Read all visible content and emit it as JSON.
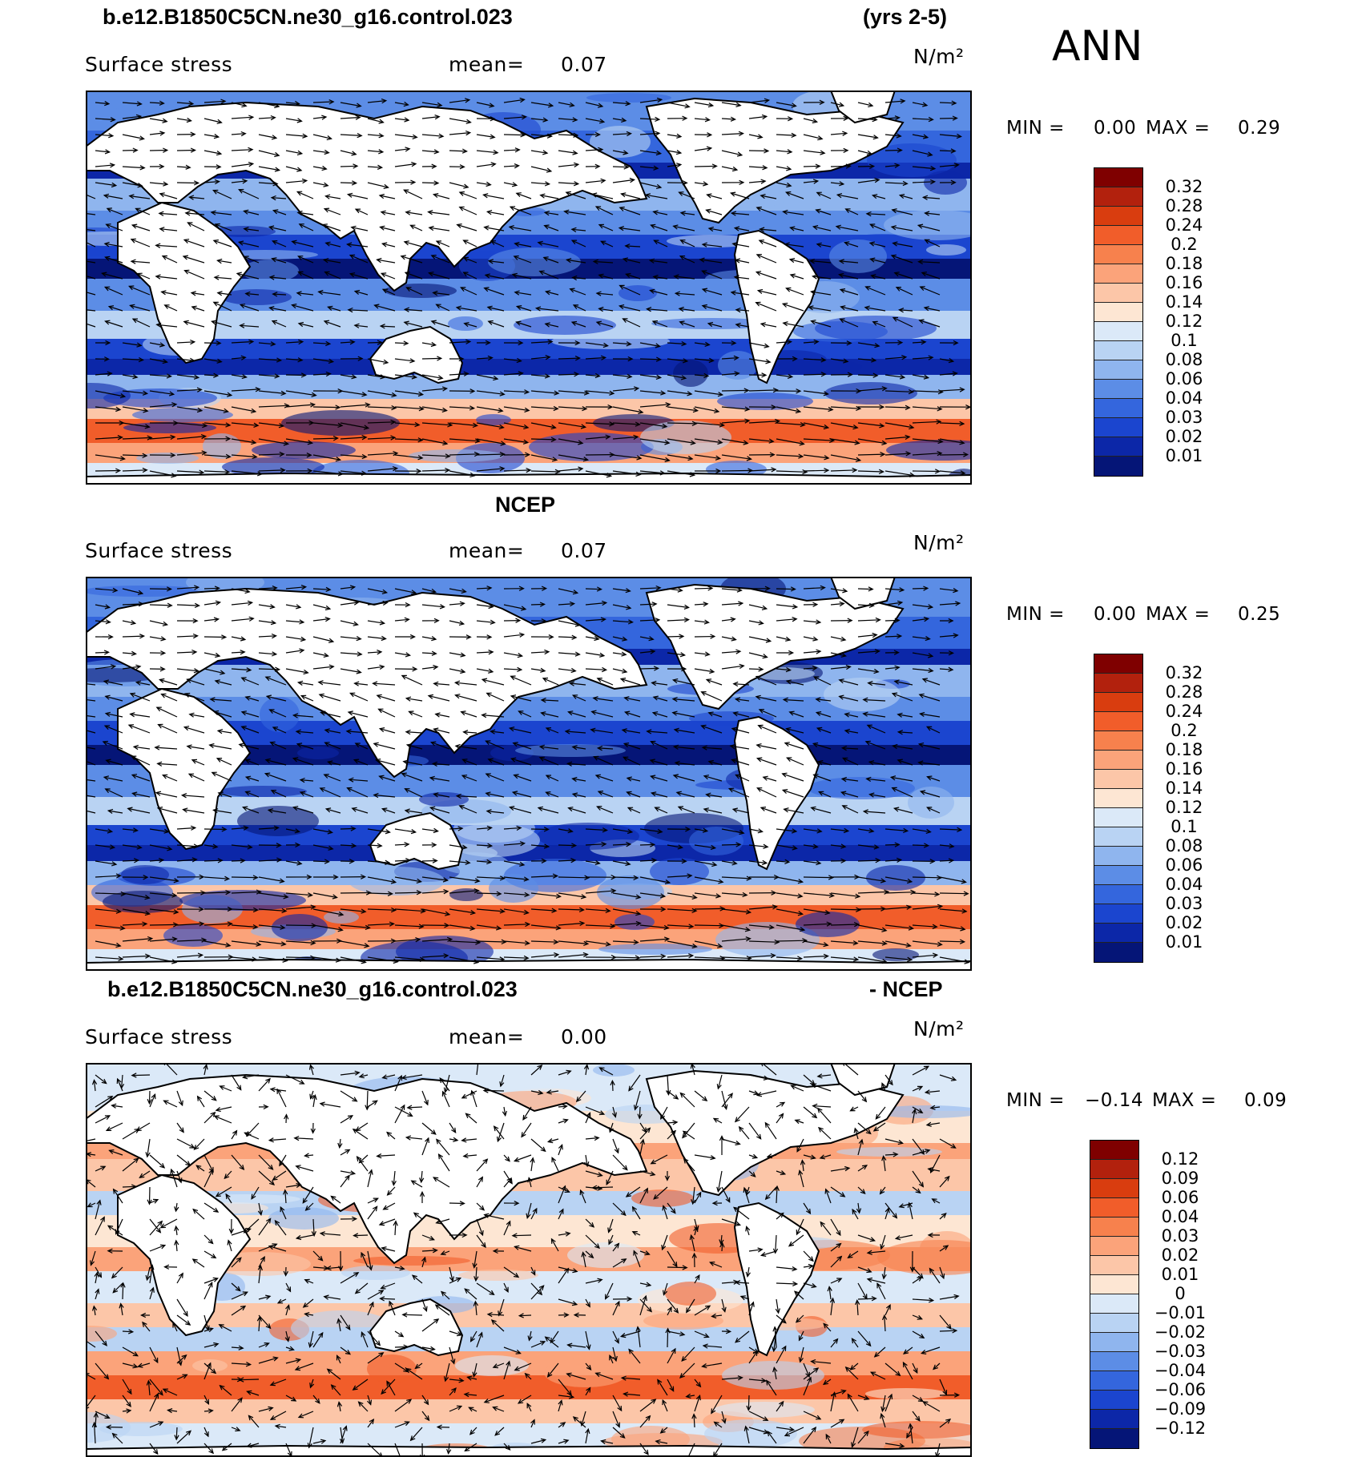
{
  "header": {
    "case_name": "b.e12.B1850C5CN.ne30_g16.control.023",
    "years": "(yrs 2-5)",
    "season": "ANN",
    "obs_name": "NCEP",
    "diff_name": "b.e12.B1850C5CN.ne30_g16.control.023",
    "diff_suffix": "- NCEP"
  },
  "panels": [
    {
      "variable": "Surface stress",
      "mean_label": "mean=",
      "mean_value": "0.07",
      "units": "N/m²",
      "min_label": "MIN =",
      "min_value": "0.00",
      "max_label": "MAX =",
      "max_value": "0.29"
    },
    {
      "variable": "Surface stress",
      "mean_label": "mean=",
      "mean_value": "0.07",
      "units": "N/m²",
      "min_label": "MIN =",
      "min_value": "0.00",
      "max_label": "MAX =",
      "max_value": "0.25"
    },
    {
      "variable": "Surface stress",
      "mean_label": "mean=",
      "mean_value": "0.00",
      "units": "N/m²",
      "min_label": "MIN =",
      "min_value": "−0.14",
      "max_label": "MAX =",
      "max_value": "0.09"
    }
  ],
  "colorbars": {
    "absolute": {
      "labels": [
        "0.32",
        "0.28",
        "0.24",
        "0.2",
        "0.18",
        "0.16",
        "0.14",
        "0.12",
        "0.1",
        "0.08",
        "0.06",
        "0.04",
        "0.03",
        "0.02",
        "0.01"
      ],
      "colors": [
        "#7f0000",
        "#b2210d",
        "#d93d0f",
        "#f15d2a",
        "#f7814d",
        "#fba37a",
        "#fcc6a8",
        "#fde6d3",
        "#dbe9f8",
        "#b9d3f3",
        "#8fb5ee",
        "#5c8de6",
        "#3466dd",
        "#1b45cf",
        "#0c27a8",
        "#051577"
      ]
    },
    "difference": {
      "labels": [
        "0.12",
        "0.09",
        "0.06",
        "0.04",
        "0.03",
        "0.02",
        "0.01",
        "0",
        "−0.01",
        "−0.02",
        "−0.03",
        "−0.04",
        "−0.06",
        "−0.09",
        "−0.12"
      ],
      "colors": [
        "#7f0000",
        "#b2210d",
        "#d93d0f",
        "#f15d2a",
        "#f7814d",
        "#fba37a",
        "#fcc6a8",
        "#fde6d3",
        "#dbe9f8",
        "#b9d3f3",
        "#8fb5ee",
        "#5c8de6",
        "#3466dd",
        "#1b45cf",
        "#0c27a8",
        "#051577"
      ]
    }
  }
}
